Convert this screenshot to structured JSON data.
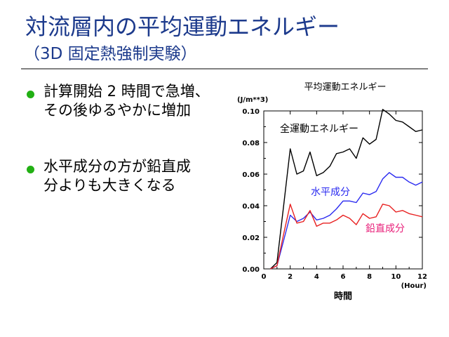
{
  "slide": {
    "title": "対流層内の平均運動エネルギー",
    "subtitle": "（3D 固定熱強制実験）",
    "bullets": [
      {
        "text": "計算開始 2 時間で急増、\nその後ゆるやかに増加"
      },
      {
        "text": "水平成分の方が鉛直成\n分よりも大きくなる"
      }
    ],
    "colors": {
      "title": "#1c3a8c",
      "bullet": "#22b014",
      "rule": "#808080"
    }
  },
  "chart_data": {
    "type": "line",
    "title": "平均運動エネルギー",
    "xlabel": "時間",
    "x_unit": "(Hour)",
    "y_unit": "(J/m**3)",
    "xlim": [
      0,
      12
    ],
    "ylim": [
      0,
      0.1
    ],
    "xticks": [
      0,
      2,
      4,
      6,
      8,
      10,
      12
    ],
    "yticks": [
      "0.00",
      "0.02",
      "0.04",
      "0.06",
      "0.08",
      "0.10"
    ],
    "grid": false,
    "series": [
      {
        "name": "全運動エネルギー",
        "color": "#000000",
        "x": [
          0.5,
          1,
          1.5,
          2,
          2.5,
          3,
          3.5,
          4,
          4.5,
          5,
          5.5,
          6,
          6.5,
          7,
          7.5,
          8,
          8.5,
          9,
          9.5,
          10,
          10.5,
          11,
          11.5,
          12
        ],
        "values": [
          0,
          0.004,
          0.04,
          0.076,
          0.06,
          0.062,
          0.074,
          0.059,
          0.061,
          0.065,
          0.073,
          0.074,
          0.076,
          0.07,
          0.083,
          0.079,
          0.082,
          0.101,
          0.098,
          0.094,
          0.093,
          0.09,
          0.087,
          0.088
        ]
      },
      {
        "name": "水平成分",
        "color": "#2a2af0",
        "x": [
          0.5,
          1,
          1.5,
          2,
          2.5,
          3,
          3.5,
          4,
          4.5,
          5,
          5.5,
          6,
          6.5,
          7,
          7.5,
          8,
          8.5,
          9,
          9.5,
          10,
          10.5,
          11,
          11.5,
          12
        ],
        "values": [
          0,
          0.002,
          0.018,
          0.034,
          0.03,
          0.032,
          0.036,
          0.031,
          0.032,
          0.034,
          0.038,
          0.043,
          0.043,
          0.042,
          0.048,
          0.047,
          0.049,
          0.057,
          0.061,
          0.058,
          0.058,
          0.055,
          0.053,
          0.055
        ]
      },
      {
        "name": "鉛直成分",
        "color": "#e82020",
        "x": [
          0.5,
          1,
          1.5,
          2,
          2.5,
          3,
          3.5,
          4,
          4.5,
          5,
          5.5,
          6,
          6.5,
          7,
          7.5,
          8,
          8.5,
          9,
          9.5,
          10,
          10.5,
          11,
          11.5,
          12
        ],
        "values": [
          0,
          0.002,
          0.022,
          0.041,
          0.029,
          0.03,
          0.037,
          0.027,
          0.029,
          0.029,
          0.031,
          0.034,
          0.032,
          0.028,
          0.035,
          0.032,
          0.033,
          0.041,
          0.04,
          0.036,
          0.037,
          0.035,
          0.034,
          0.033
        ]
      }
    ]
  }
}
